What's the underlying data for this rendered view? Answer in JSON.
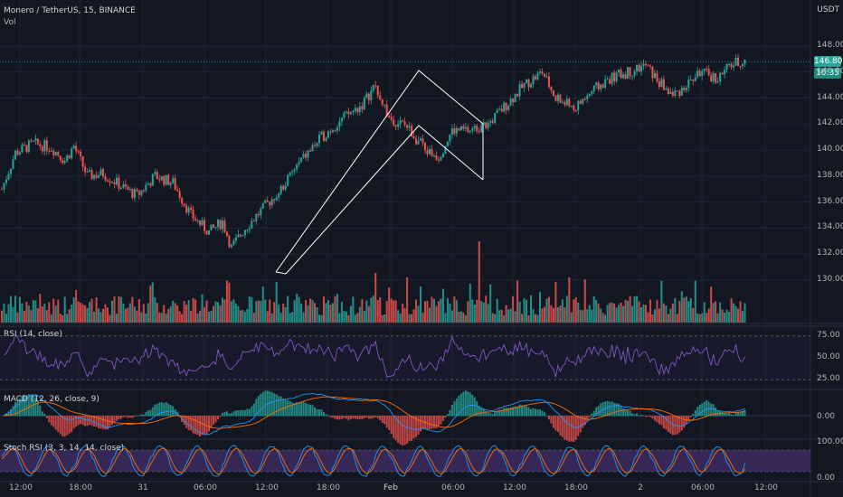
{
  "header": {
    "symbol": "Monero / TetherUS, 15, BINANCE",
    "volume_label": "Vol",
    "currency": "USDT"
  },
  "colors": {
    "bg": "#131722",
    "grid": "#1e2331",
    "up": "#26a69a",
    "down": "#ef5350",
    "rsi": "#7e57c2",
    "macd": "#2196f3",
    "signal": "#ff6d00",
    "stoch_band": "#3b2a5c",
    "stoch_k": "#2196f3",
    "stoch_d": "#ff6d00",
    "text": "#b2b5be"
  },
  "price_axis": {
    "ticks": [
      "148.00",
      "146.00",
      "144.00",
      "142.00",
      "140.00",
      "138.00",
      "136.00",
      "134.00",
      "132.00",
      "130.00"
    ]
  },
  "last_price": {
    "value": "146.80",
    "countdown": "10:35"
  },
  "rsi": {
    "title": "RSI (14, close)",
    "ticks": [
      "75.00",
      "50.00",
      "25.00"
    ]
  },
  "macd": {
    "title": "MACD (12, 26, close, 9)",
    "ticks": [
      "0.00"
    ]
  },
  "stoch": {
    "title": "Stoch RSI (3, 3, 14, 14, close)",
    "ticks": [
      "100.00",
      "0.00"
    ]
  },
  "time_axis": {
    "ticks": [
      "12:00",
      "18:00",
      "31",
      "06:00",
      "12:00",
      "18:00",
      "Feb",
      "06:00",
      "12:00",
      "18:00",
      "2",
      "06:00",
      "12:00"
    ]
  }
}
